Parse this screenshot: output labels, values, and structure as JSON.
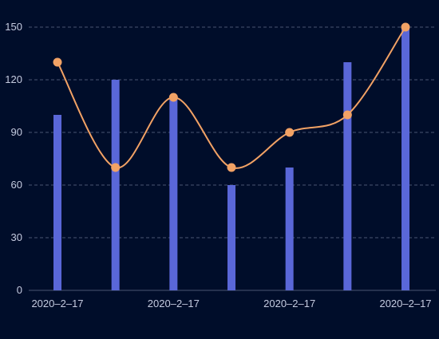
{
  "colors": {
    "background": "#000d2a",
    "bar": "#5a67d8",
    "line": "#f2a265",
    "grid": "#4a5573",
    "tick_text": "#c5cbe0"
  },
  "chart_data": {
    "type": "bar",
    "title": "",
    "xlabel": "",
    "ylabel": "",
    "grid": true,
    "legend": "none",
    "ylim": [
      0,
      150
    ],
    "y_ticks": [
      0,
      30,
      60,
      90,
      120,
      150
    ],
    "categories": [
      "2020-2-17",
      "",
      "2020-2-17",
      "",
      "2020-2-17",
      "",
      "2020-2-17"
    ],
    "x_tick_labels": [
      "2020–2–17",
      "2020–2–17",
      "2020–2–17",
      "2020–2–17"
    ],
    "series": [
      {
        "type": "bar",
        "values": [
          100,
          120,
          110,
          60,
          70,
          130,
          150
        ]
      },
      {
        "type": "line",
        "smooth": true,
        "values": [
          130,
          70,
          110,
          70,
          90,
          100,
          150
        ]
      }
    ]
  }
}
